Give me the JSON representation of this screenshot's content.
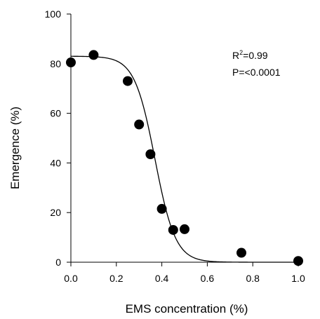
{
  "chart_data": {
    "type": "scatter",
    "title": "",
    "xlabel": "EMS concentration (%)",
    "ylabel": "Emergence (%)",
    "xlim": [
      0,
      1.0
    ],
    "ylim": [
      0,
      100
    ],
    "xticks": [
      "0.0",
      "0.2",
      "0.4",
      "0.6",
      "0.8",
      "1.0"
    ],
    "yticks": [
      "0",
      "20",
      "40",
      "60",
      "80",
      "100"
    ],
    "grid": false,
    "legend": "none",
    "annotation": {
      "r2_base": "R",
      "r2_sup": "2",
      "r2_value": "=0.99",
      "p_value": "P=<0.0001"
    },
    "series": [
      {
        "x": [
          0.0,
          0.1,
          0.25,
          0.3,
          0.35,
          0.4,
          0.45,
          0.5,
          0.75,
          1.0
        ],
        "y": [
          80.5,
          83.5,
          73,
          55.5,
          43.5,
          21.5,
          13,
          13.3,
          3.8,
          0.5
        ]
      }
    ],
    "fit_curve": {
      "model": "sigmoid",
      "top": 83,
      "bottom": 0,
      "x50": 0.37,
      "slope": 0.045
    },
    "colors": {
      "marker": "#000000",
      "line": "#000000",
      "axis": "#000000"
    }
  }
}
